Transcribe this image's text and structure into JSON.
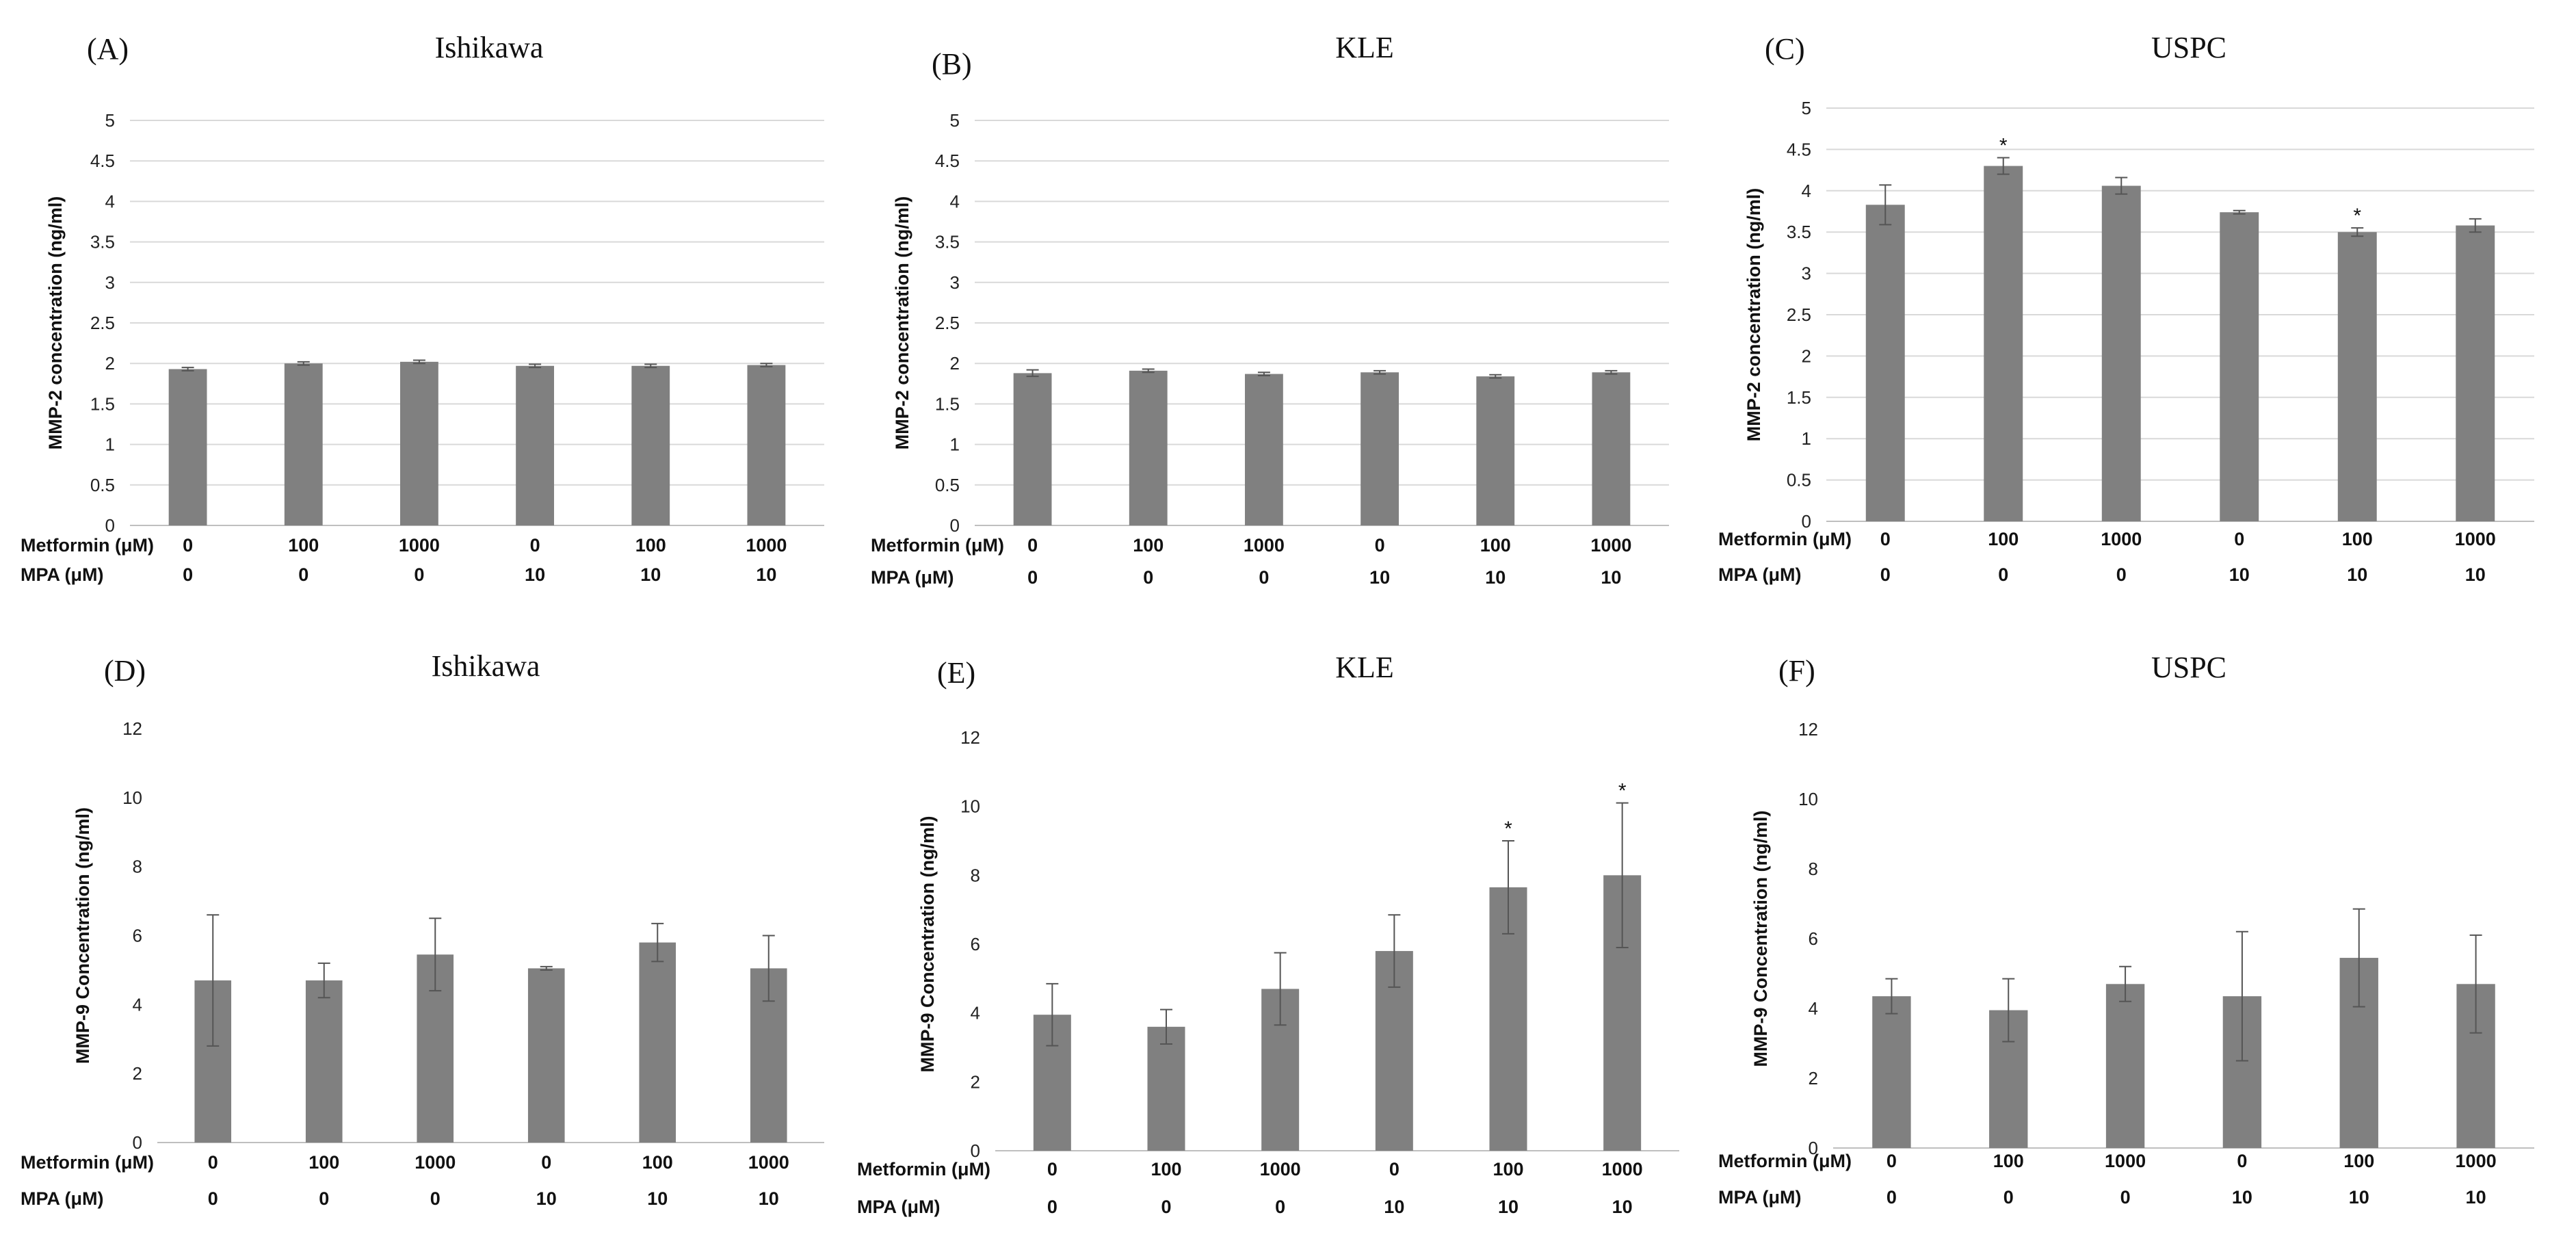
{
  "chart_data": [
    {
      "type": "bar",
      "letter": "(A)",
      "title": "Ishikawa",
      "ylabel": "MMP-2 concentration (ng/ml)",
      "ylim": [
        0,
        5
      ],
      "yticks": [
        "0",
        "0.5",
        "1",
        "1.5",
        "2",
        "2.5",
        "3",
        "3.5",
        "4",
        "4.5",
        "5"
      ],
      "row_labels": [
        "Metformin (μM)",
        "MPA (μM)"
      ],
      "metformin": [
        "0",
        "100",
        "1000",
        "0",
        "100",
        "1000"
      ],
      "mpa": [
        "0",
        "0",
        "0",
        "10",
        "10",
        "10"
      ],
      "values": [
        1.93,
        2.0,
        2.02,
        1.97,
        1.97,
        1.98
      ],
      "errors": [
        0.02,
        0.02,
        0.02,
        0.02,
        0.02,
        0.02
      ],
      "significance": [
        "",
        "",
        "",
        "",
        "",
        ""
      ],
      "grid": true
    },
    {
      "type": "bar",
      "letter": "(B)",
      "title": "KLE",
      "ylabel": "MMP-2 concentration (ng/ml)",
      "ylim": [
        0,
        5
      ],
      "yticks": [
        "0",
        "0.5",
        "1",
        "1.5",
        "2",
        "2.5",
        "3",
        "3.5",
        "4",
        "4.5",
        "5"
      ],
      "row_labels": [
        "Metformin (μM)",
        "MPA (μM)"
      ],
      "metformin": [
        "0",
        "100",
        "1000",
        "0",
        "100",
        "1000"
      ],
      "mpa": [
        "0",
        "0",
        "0",
        "10",
        "10",
        "10"
      ],
      "values": [
        1.88,
        1.91,
        1.87,
        1.89,
        1.84,
        1.89
      ],
      "errors": [
        0.04,
        0.02,
        0.02,
        0.02,
        0.02,
        0.02
      ],
      "significance": [
        "",
        "",
        "",
        "",
        "",
        ""
      ],
      "grid": true
    },
    {
      "type": "bar",
      "letter": "(C)",
      "title": "USPC",
      "ylabel": "MMP-2 concentration (ng/ml)",
      "ylim": [
        0,
        5
      ],
      "yticks": [
        "0",
        "0.5",
        "1",
        "1.5",
        "2",
        "2.5",
        "3",
        "3.5",
        "4",
        "4.5",
        "5"
      ],
      "row_labels": [
        "Metformin (μM)",
        "MPA (μM)"
      ],
      "metformin": [
        "0",
        "100",
        "1000",
        "0",
        "100",
        "1000"
      ],
      "mpa": [
        "0",
        "0",
        "0",
        "10",
        "10",
        "10"
      ],
      "values": [
        3.83,
        4.3,
        4.06,
        3.74,
        3.5,
        3.58
      ],
      "errors": [
        0.24,
        0.1,
        0.1,
        0.02,
        0.05,
        0.08
      ],
      "significance": [
        "",
        "*",
        "",
        "",
        "*",
        ""
      ],
      "grid": true
    },
    {
      "type": "bar",
      "letter": "(D)",
      "title": "Ishikawa",
      "ylabel": "MMP-9 Concentration (ng/ml)",
      "ylim": [
        0,
        12
      ],
      "yticks": [
        "0",
        "2",
        "4",
        "6",
        "8",
        "10",
        "12"
      ],
      "row_labels": [
        "Metformin (μM)",
        "MPA (μM)"
      ],
      "metformin": [
        "0",
        "100",
        "1000",
        "0",
        "100",
        "1000"
      ],
      "mpa": [
        "0",
        "0",
        "0",
        "10",
        "10",
        "10"
      ],
      "values": [
        4.7,
        4.7,
        5.45,
        5.05,
        5.8,
        5.05
      ],
      "errors": [
        1.9,
        0.5,
        1.05,
        0.05,
        0.55,
        0.95
      ],
      "significance": [
        "",
        "",
        "",
        "",
        "",
        ""
      ],
      "grid": false
    },
    {
      "type": "bar",
      "letter": "(E)",
      "title": "KLE",
      "ylabel": "MMP-9 Concentration (ng/ml)",
      "ylim": [
        0,
        12
      ],
      "yticks": [
        "0",
        "2",
        "4",
        "6",
        "8",
        "10",
        "12"
      ],
      "row_labels": [
        "Metformin (μM)",
        "MPA (μM)"
      ],
      "metformin": [
        "0",
        "100",
        "1000",
        "0",
        "100",
        "1000"
      ],
      "mpa": [
        "0",
        "0",
        "0",
        "10",
        "10",
        "10"
      ],
      "values": [
        3.95,
        3.6,
        4.7,
        5.8,
        7.65,
        8.0
      ],
      "errors": [
        0.9,
        0.5,
        1.05,
        1.05,
        1.35,
        2.1
      ],
      "significance": [
        "",
        "",
        "",
        "",
        "*",
        "*"
      ],
      "grid": false
    },
    {
      "type": "bar",
      "letter": "(F)",
      "title": "USPC",
      "ylabel": "MMP-9 Concentration (ng/ml)",
      "ylim": [
        0,
        12
      ],
      "yticks": [
        "0",
        "2",
        "4",
        "6",
        "8",
        "10",
        "12"
      ],
      "row_labels": [
        "Metformin (μM)",
        "MPA (μM)"
      ],
      "metformin": [
        "0",
        "100",
        "1000",
        "0",
        "100",
        "1000"
      ],
      "mpa": [
        "0",
        "0",
        "0",
        "10",
        "10",
        "10"
      ],
      "values": [
        4.35,
        3.95,
        4.7,
        4.35,
        5.45,
        4.7
      ],
      "errors": [
        0.5,
        0.9,
        0.5,
        1.85,
        1.4,
        1.4
      ],
      "significance": [
        "",
        "",
        "",
        "",
        "",
        ""
      ],
      "grid": false
    }
  ]
}
